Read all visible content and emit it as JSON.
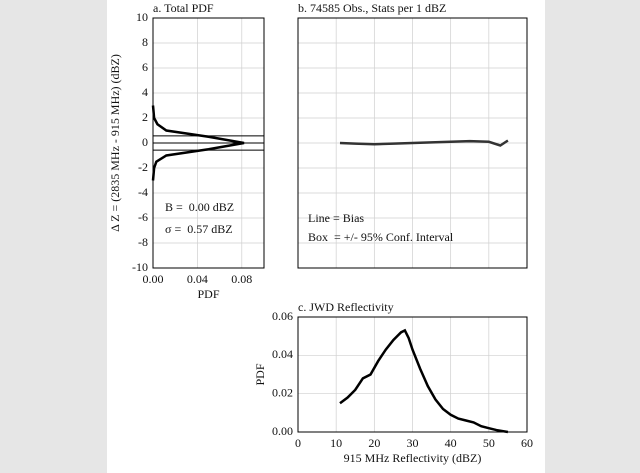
{
  "chart_data": [
    {
      "type": "line",
      "title": "a. Total PDF",
      "xlabel": "PDF",
      "ylabel": "Δ Z = (2835 MHz - 915 MHz) (dBZ)",
      "annotations": [
        "B =  0.00 dBZ",
        "σ =  0.57 dBZ"
      ],
      "x": [
        0.0,
        0.001,
        0.003,
        0.012,
        0.05,
        0.082,
        0.05,
        0.012,
        0.004,
        0.001,
        0.0
      ],
      "y": [
        -3,
        -2,
        -1.5,
        -1,
        -0.5,
        0,
        0.5,
        1,
        1.5,
        2,
        3
      ],
      "hlines": [
        -0.57,
        0,
        0.57
      ],
      "xlim": [
        0,
        0.1
      ],
      "xticks": [
        {
          "value": 0,
          "label": "0.00"
        },
        {
          "value": 0.04,
          "label": "0.04"
        },
        {
          "value": 0.08,
          "label": "0.08"
        }
      ],
      "ylim": [
        -10,
        10
      ],
      "yticks": [
        -10,
        -8,
        -6,
        -4,
        -2,
        0,
        2,
        4,
        6,
        8,
        10
      ],
      "grid": true,
      "tick_labels": true,
      "color": "#000000"
    },
    {
      "type": "line",
      "title": "b. 74585 Obs., Stats per 1 dBZ",
      "annotations": [
        "Line = Bias",
        "Box  = +/- 95% Conf. Interval"
      ],
      "x": [
        11,
        15,
        20,
        25,
        30,
        35,
        40,
        45,
        50,
        53,
        55
      ],
      "y": [
        0.0,
        -0.05,
        -0.1,
        -0.05,
        0,
        0.05,
        0.1,
        0.15,
        0.1,
        -0.2,
        0.2
      ],
      "xlim": [
        0,
        60
      ],
      "xticks": [
        0,
        10,
        20,
        30,
        40,
        50,
        60
      ],
      "ylim": [
        -10,
        10
      ],
      "yticks": [
        -10,
        -8,
        -6,
        -4,
        -2,
        0,
        2,
        4,
        6,
        8,
        10
      ],
      "grid": true,
      "tick_labels": false,
      "color": "#333333"
    },
    {
      "type": "line",
      "title": "c. JWD Reflectivity",
      "xlabel": "915 MHz Reflectivity (dBZ)",
      "ylabel": "PDF",
      "x": [
        11,
        13,
        15,
        17,
        19,
        21,
        23,
        25,
        26,
        27,
        28,
        29,
        30,
        32,
        34,
        36,
        38,
        40,
        42,
        44,
        46,
        48,
        50,
        52,
        55
      ],
      "y": [
        0.015,
        0.018,
        0.022,
        0.028,
        0.03,
        0.037,
        0.043,
        0.048,
        0.05,
        0.052,
        0.053,
        0.049,
        0.043,
        0.033,
        0.024,
        0.017,
        0.012,
        0.009,
        0.007,
        0.006,
        0.005,
        0.003,
        0.002,
        0.001,
        0
      ],
      "xlim": [
        0,
        60
      ],
      "xticks": [
        0,
        10,
        20,
        30,
        40,
        50,
        60
      ],
      "ylim": [
        0,
        0.06
      ],
      "yticks": [
        {
          "value": 0,
          "label": "0.00"
        },
        {
          "value": 0.02,
          "label": "0.02"
        },
        {
          "value": 0.04,
          "label": "0.04"
        },
        {
          "value": 0.06,
          "label": "0.06"
        }
      ],
      "grid": true,
      "tick_labels": true,
      "color": "#000000"
    }
  ]
}
